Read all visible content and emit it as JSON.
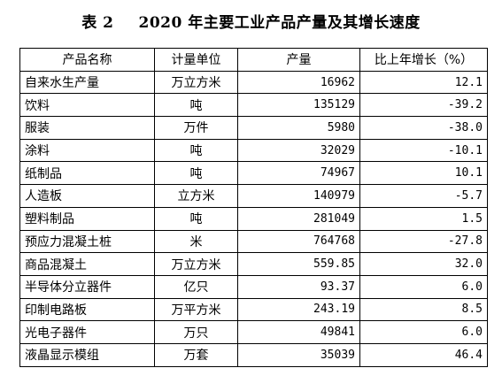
{
  "title": {
    "label": "表 2",
    "text": "2020 年主要工业产品产量及其增长速度"
  },
  "table": {
    "headers": [
      "产品名称",
      "计量单位",
      "产量",
      "比上年增长（%）"
    ],
    "rows": [
      {
        "name": "自来水生产量",
        "unit": "万立方米",
        "output": "16962",
        "growth": "12.1"
      },
      {
        "name": "饮料",
        "unit": "吨",
        "output": "135129",
        "growth": "-39.2"
      },
      {
        "name": "服装",
        "unit": "万件",
        "output": "5980",
        "growth": "-38.0"
      },
      {
        "name": "涂料",
        "unit": "吨",
        "output": "32029",
        "growth": "-10.1"
      },
      {
        "name": "纸制品",
        "unit": "吨",
        "output": "74967",
        "growth": "10.1"
      },
      {
        "name": "人造板",
        "unit": "立方米",
        "output": "140979",
        "growth": "-5.7"
      },
      {
        "name": "塑料制品",
        "unit": "吨",
        "output": "281049",
        "growth": "1.5"
      },
      {
        "name": "预应力混凝土桩",
        "unit": "米",
        "output": "764768",
        "growth": "-27.8"
      },
      {
        "name": "商品混凝土",
        "unit": "万立方米",
        "output": "559.85",
        "growth": "32.0"
      },
      {
        "name": "半导体分立器件",
        "unit": "亿只",
        "output": "93.37",
        "growth": "6.0"
      },
      {
        "name": "印制电路板",
        "unit": "万平方米",
        "output": "243.19",
        "growth": "8.5"
      },
      {
        "name": "光电子器件",
        "unit": "万只",
        "output": "49841",
        "growth": "6.0"
      },
      {
        "name": "液晶显示模组",
        "unit": "万套",
        "output": "35039",
        "growth": "46.4"
      }
    ]
  }
}
